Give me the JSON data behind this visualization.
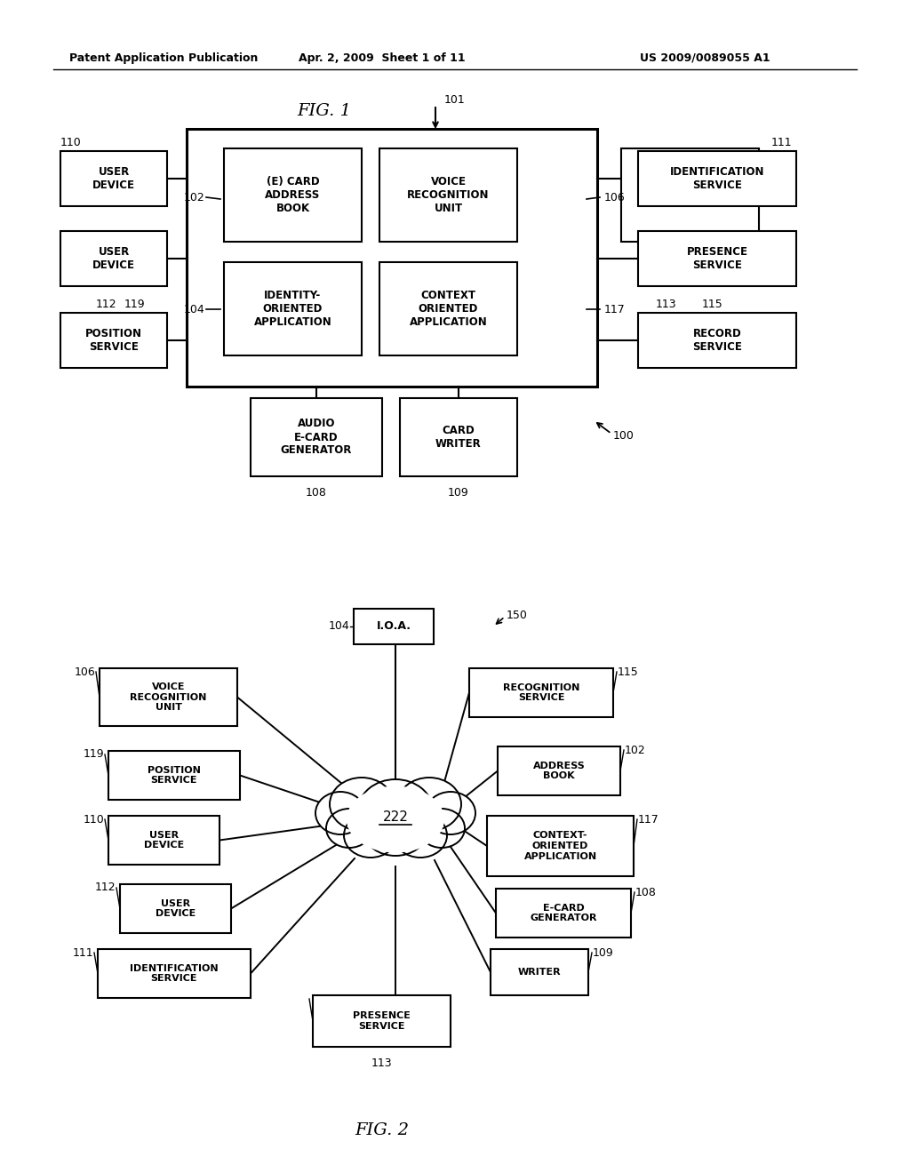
{
  "header_left": "Patent Application Publication",
  "header_mid": "Apr. 2, 2009  Sheet 1 of 11",
  "header_right": "US 2009/0089055 A1",
  "fig1_title": "FIG. 1",
  "fig2_title": "FIG. 2",
  "bg_color": "#ffffff"
}
